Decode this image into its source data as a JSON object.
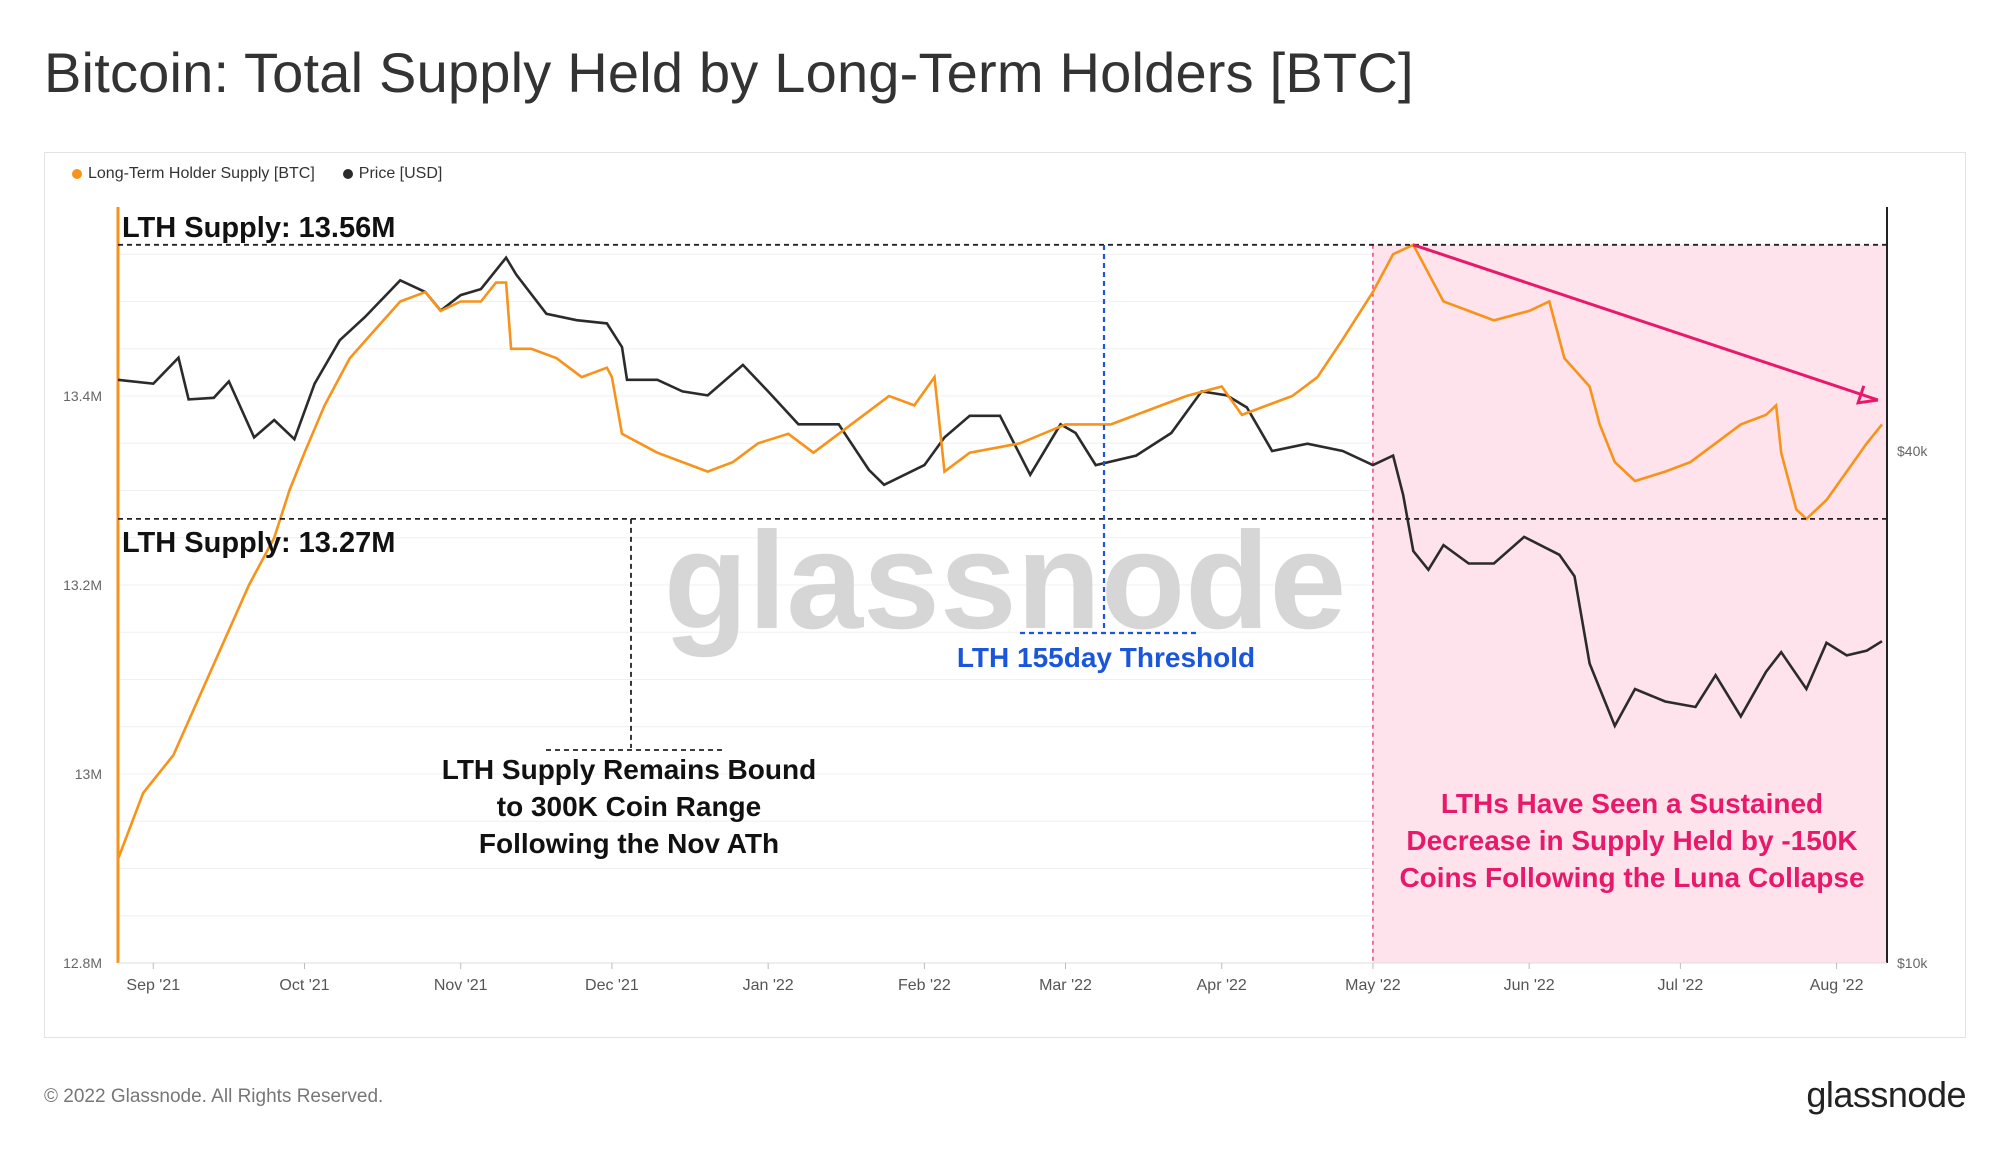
{
  "title": "Bitcoin: Total Supply Held by Long-Term Holders [BTC]",
  "footer": {
    "copyright": "© 2022 Glassnode. All Rights Reserved.",
    "logo": "glassnode"
  },
  "colors": {
    "supply": "#f7931a",
    "price": "#2b2b2b",
    "highlight": "#ffe3ec",
    "pink": "#e8196a",
    "blue": "#1a56db"
  },
  "chart_data": {
    "type": "line",
    "title": "Bitcoin: Total Supply Held by Long-Term Holders [BTC]",
    "x_range": [
      "2021-08-25",
      "2022-08-11"
    ],
    "x_ticks": [
      "Sep '21",
      "Oct '21",
      "Nov '21",
      "Dec '21",
      "Jan '22",
      "Feb '22",
      "Mar '22",
      "Apr '22",
      "May '22",
      "Jun '22",
      "Jul '22",
      "Aug '22"
    ],
    "y_left": {
      "ticks": [
        "12.8M",
        "13M",
        "13.2M",
        "13.4M"
      ],
      "range": [
        12.8,
        13.6
      ],
      "unit": "M BTC"
    },
    "y_right": {
      "ticks": [
        "$10k",
        "$40k"
      ],
      "scale": "log"
    },
    "legend": {
      "position": "top-left",
      "items": [
        "Long-Term Holder Supply [BTC]",
        "Price [USD]"
      ]
    },
    "series": [
      {
        "name": "Long-Term Holder Supply [BTC]",
        "color": "#f7931a",
        "points": [
          [
            "2021-08-25",
            12.91
          ],
          [
            "2021-08-30",
            12.98
          ],
          [
            "2021-09-05",
            13.02
          ],
          [
            "2021-09-10",
            13.08
          ],
          [
            "2021-09-15",
            13.14
          ],
          [
            "2021-09-20",
            13.2
          ],
          [
            "2021-09-25",
            13.25
          ],
          [
            "2021-09-28",
            13.3
          ],
          [
            "2021-10-01",
            13.34
          ],
          [
            "2021-10-05",
            13.39
          ],
          [
            "2021-10-10",
            13.44
          ],
          [
            "2021-10-15",
            13.47
          ],
          [
            "2021-10-20",
            13.5
          ],
          [
            "2021-10-25",
            13.51
          ],
          [
            "2021-10-28",
            13.49
          ],
          [
            "2021-11-01",
            13.5
          ],
          [
            "2021-11-05",
            13.5
          ],
          [
            "2021-11-08",
            13.52
          ],
          [
            "2021-11-10",
            13.52
          ],
          [
            "2021-11-11",
            13.45
          ],
          [
            "2021-11-15",
            13.45
          ],
          [
            "2021-11-20",
            13.44
          ],
          [
            "2021-11-25",
            13.42
          ],
          [
            "2021-11-30",
            13.43
          ],
          [
            "2021-12-01",
            13.42
          ],
          [
            "2021-12-03",
            13.36
          ],
          [
            "2021-12-10",
            13.34
          ],
          [
            "2021-12-15",
            13.33
          ],
          [
            "2021-12-20",
            13.32
          ],
          [
            "2021-12-25",
            13.33
          ],
          [
            "2021-12-30",
            13.35
          ],
          [
            "2022-01-05",
            13.36
          ],
          [
            "2022-01-10",
            13.34
          ],
          [
            "2022-01-15",
            13.36
          ],
          [
            "2022-01-20",
            13.38
          ],
          [
            "2022-01-25",
            13.4
          ],
          [
            "2022-01-30",
            13.39
          ],
          [
            "2022-02-03",
            13.42
          ],
          [
            "2022-02-05",
            13.32
          ],
          [
            "2022-02-10",
            13.34
          ],
          [
            "2022-02-20",
            13.35
          ],
          [
            "2022-03-01",
            13.37
          ],
          [
            "2022-03-10",
            13.37
          ],
          [
            "2022-03-15",
            13.38
          ],
          [
            "2022-03-20",
            13.39
          ],
          [
            "2022-03-25",
            13.4
          ],
          [
            "2022-04-01",
            13.41
          ],
          [
            "2022-04-05",
            13.38
          ],
          [
            "2022-04-10",
            13.39
          ],
          [
            "2022-04-15",
            13.4
          ],
          [
            "2022-04-20",
            13.42
          ],
          [
            "2022-04-25",
            13.46
          ],
          [
            "2022-05-01",
            13.51
          ],
          [
            "2022-05-05",
            13.55
          ],
          [
            "2022-05-09",
            13.56
          ],
          [
            "2022-05-12",
            13.53
          ],
          [
            "2022-05-15",
            13.5
          ],
          [
            "2022-05-20",
            13.49
          ],
          [
            "2022-05-25",
            13.48
          ],
          [
            "2022-06-01",
            13.49
          ],
          [
            "2022-06-05",
            13.5
          ],
          [
            "2022-06-08",
            13.44
          ],
          [
            "2022-06-13",
            13.41
          ],
          [
            "2022-06-15",
            13.37
          ],
          [
            "2022-06-18",
            13.33
          ],
          [
            "2022-06-22",
            13.31
          ],
          [
            "2022-06-28",
            13.32
          ],
          [
            "2022-07-03",
            13.33
          ],
          [
            "2022-07-08",
            13.35
          ],
          [
            "2022-07-13",
            13.37
          ],
          [
            "2022-07-18",
            13.38
          ],
          [
            "2022-07-20",
            13.39
          ],
          [
            "2022-07-21",
            13.34
          ],
          [
            "2022-07-24",
            13.28
          ],
          [
            "2022-07-26",
            13.27
          ],
          [
            "2022-07-30",
            13.29
          ],
          [
            "2022-08-03",
            13.32
          ],
          [
            "2022-08-07",
            13.35
          ],
          [
            "2022-08-10",
            13.37
          ]
        ]
      },
      {
        "name": "Price [USD]",
        "color": "#2b2b2b",
        "points": [
          [
            "2021-08-25",
            48500
          ],
          [
            "2021-09-01",
            48000
          ],
          [
            "2021-09-06",
            51500
          ],
          [
            "2021-09-08",
            46000
          ],
          [
            "2021-09-13",
            46200
          ],
          [
            "2021-09-16",
            48300
          ],
          [
            "2021-09-21",
            41500
          ],
          [
            "2021-09-25",
            43500
          ],
          [
            "2021-09-29",
            41300
          ],
          [
            "2021-10-03",
            48000
          ],
          [
            "2021-10-08",
            54000
          ],
          [
            "2021-10-13",
            57500
          ],
          [
            "2021-10-20",
            63500
          ],
          [
            "2021-10-25",
            61500
          ],
          [
            "2021-10-28",
            58500
          ],
          [
            "2021-11-01",
            61000
          ],
          [
            "2021-11-05",
            62000
          ],
          [
            "2021-11-10",
            67500
          ],
          [
            "2021-11-12",
            64500
          ],
          [
            "2021-11-18",
            58000
          ],
          [
            "2021-11-24",
            57000
          ],
          [
            "2021-11-30",
            56500
          ],
          [
            "2021-12-03",
            53000
          ],
          [
            "2021-12-04",
            48500
          ],
          [
            "2021-12-10",
            48500
          ],
          [
            "2021-12-15",
            47000
          ],
          [
            "2021-12-20",
            46500
          ],
          [
            "2021-12-27",
            50500
          ],
          [
            "2022-01-01",
            47000
          ],
          [
            "2022-01-07",
            43000
          ],
          [
            "2022-01-15",
            43000
          ],
          [
            "2022-01-21",
            38000
          ],
          [
            "2022-01-24",
            36500
          ],
          [
            "2022-02-01",
            38500
          ],
          [
            "2022-02-05",
            41500
          ],
          [
            "2022-02-10",
            44000
          ],
          [
            "2022-02-16",
            44000
          ],
          [
            "2022-02-22",
            37500
          ],
          [
            "2022-02-28",
            43000
          ],
          [
            "2022-03-03",
            42000
          ],
          [
            "2022-03-07",
            38500
          ],
          [
            "2022-03-15",
            39500
          ],
          [
            "2022-03-22",
            42000
          ],
          [
            "2022-03-28",
            47000
          ],
          [
            "2022-04-02",
            46500
          ],
          [
            "2022-04-06",
            45000
          ],
          [
            "2022-04-11",
            40000
          ],
          [
            "2022-04-18",
            40800
          ],
          [
            "2022-04-25",
            40000
          ],
          [
            "2022-05-01",
            38500
          ],
          [
            "2022-05-05",
            39500
          ],
          [
            "2022-05-07",
            35500
          ],
          [
            "2022-05-09",
            30500
          ],
          [
            "2022-05-12",
            29000
          ],
          [
            "2022-05-15",
            31000
          ],
          [
            "2022-05-20",
            29500
          ],
          [
            "2022-05-25",
            29500
          ],
          [
            "2022-05-31",
            31700
          ],
          [
            "2022-06-07",
            30200
          ],
          [
            "2022-06-10",
            28500
          ],
          [
            "2022-06-13",
            22500
          ],
          [
            "2022-06-18",
            19000
          ],
          [
            "2022-06-22",
            21000
          ],
          [
            "2022-06-28",
            20300
          ],
          [
            "2022-07-04",
            20000
          ],
          [
            "2022-07-08",
            21800
          ],
          [
            "2022-07-13",
            19500
          ],
          [
            "2022-07-18",
            22000
          ],
          [
            "2022-07-21",
            23200
          ],
          [
            "2022-07-26",
            21000
          ],
          [
            "2022-07-30",
            23800
          ],
          [
            "2022-08-03",
            23000
          ],
          [
            "2022-08-07",
            23300
          ],
          [
            "2022-08-10",
            23900
          ]
        ]
      }
    ]
  },
  "annotations": {
    "top_level": "LTH Supply: 13.56M",
    "bottom_level": "LTH Supply: 13.27M",
    "threshold": "LTH 155day Threshold",
    "range_note": [
      "LTH Supply Remains Bound",
      "to 300K Coin Range",
      "Following the Nov ATh"
    ],
    "luna_note": [
      "LTHs Have Seen a Sustained",
      "Decrease in Supply Held by -150K",
      "Coins Following the Luna Collapse"
    ]
  },
  "watermark": "glassnode"
}
